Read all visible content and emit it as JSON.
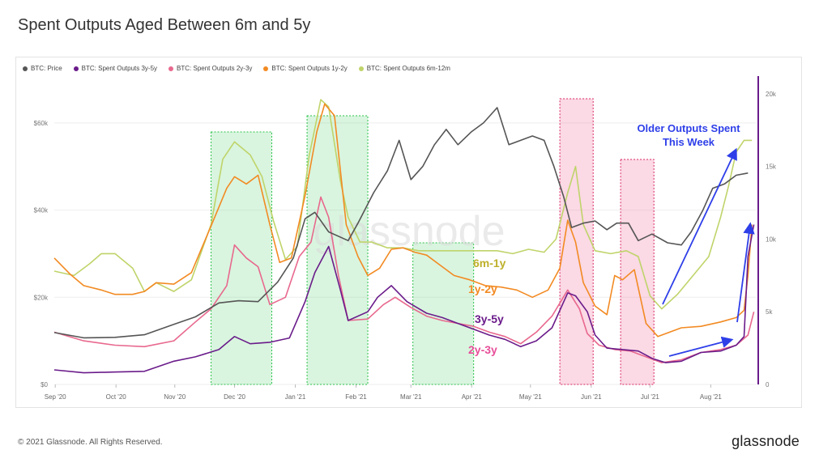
{
  "page": {
    "title": "Spent Outputs Aged Between 6m and 5y",
    "footer": "© 2021 Glassnode. All Rights Reserved.",
    "brand": "glassnode",
    "watermark": "glassnode"
  },
  "chart_data": {
    "type": "line",
    "legend": [
      {
        "name": "BTC: Price",
        "color": "#555555"
      },
      {
        "name": "BTC: Spent Outputs 3y-5y",
        "color": "#6a1b8a"
      },
      {
        "name": "BTC: Spent Outputs 2y-3y",
        "color": "#e8688e"
      },
      {
        "name": "BTC: Spent Outputs 1y-2y",
        "color": "#f28a22"
      },
      {
        "name": "BTC: Spent Outputs 6m-12m",
        "color": "#bfd46a"
      }
    ],
    "x_ticks": [
      "Sep '20",
      "Oct '20",
      "Nov '20",
      "Dec '20",
      "Jan '21",
      "Feb '21",
      "Mar '21",
      "Apr '21",
      "May '21",
      "Jun '21",
      "Jul '21",
      "Aug '21"
    ],
    "x_tick_t": [
      0.5,
      31.5,
      61.5,
      92,
      123,
      154,
      182,
      213,
      243,
      274,
      304,
      335
    ],
    "x_range": [
      0,
      358
    ],
    "left_axis": {
      "ticks": [
        0,
        20000,
        40000,
        60000
      ],
      "labels": [
        "$0",
        "$20k",
        "$40k",
        "$60k"
      ],
      "range": [
        0,
        70000
      ]
    },
    "right_axis": {
      "ticks": [
        0,
        5000,
        10000,
        15000,
        20000
      ],
      "labels": [
        "0",
        "5k",
        "10k",
        "15k",
        "20k"
      ],
      "range": [
        0,
        21000
      ]
    },
    "highlights": [
      {
        "t0": 80,
        "t1": 111,
        "color": "green"
      },
      {
        "t0": 129,
        "t1": 160,
        "color": "green"
      },
      {
        "t0": 183,
        "t1": 214,
        "color": "green"
      },
      {
        "t0": 258,
        "t1": 275,
        "color": "pink"
      },
      {
        "t0": 289,
        "t1": 306,
        "color": "pink"
      }
    ],
    "series": [
      {
        "name": "BTC: Price",
        "axis": "left",
        "color": "#555555",
        "points": [
          [
            0,
            11900
          ],
          [
            15,
            10700
          ],
          [
            31,
            10800
          ],
          [
            46,
            11400
          ],
          [
            61,
            13800
          ],
          [
            72,
            15500
          ],
          [
            84,
            18700
          ],
          [
            94,
            19200
          ],
          [
            104,
            19000
          ],
          [
            114,
            23500
          ],
          [
            122,
            29000
          ],
          [
            128,
            38000
          ],
          [
            133,
            39500
          ],
          [
            140,
            35000
          ],
          [
            150,
            33000
          ],
          [
            155,
            37000
          ],
          [
            163,
            44000
          ],
          [
            170,
            49000
          ],
          [
            176,
            56000
          ],
          [
            182,
            47000
          ],
          [
            188,
            50000
          ],
          [
            194,
            55000
          ],
          [
            200,
            58500
          ],
          [
            206,
            55000
          ],
          [
            213,
            58000
          ],
          [
            219,
            60000
          ],
          [
            226,
            63500
          ],
          [
            232,
            55000
          ],
          [
            238,
            56000
          ],
          [
            244,
            57000
          ],
          [
            250,
            56000
          ],
          [
            255,
            50000
          ],
          [
            260,
            43000
          ],
          [
            264,
            36000
          ],
          [
            270,
            37000
          ],
          [
            276,
            37500
          ],
          [
            282,
            35500
          ],
          [
            287,
            37000
          ],
          [
            293,
            37000
          ],
          [
            298,
            33000
          ],
          [
            305,
            34500
          ],
          [
            313,
            32500
          ],
          [
            320,
            32000
          ],
          [
            325,
            35000
          ],
          [
            331,
            40000
          ],
          [
            336,
            45000
          ],
          [
            342,
            46000
          ],
          [
            348,
            48000
          ],
          [
            354,
            48500
          ]
        ]
      },
      {
        "name": "BTC: Spent Outputs 3y-5y",
        "axis": "right",
        "color": "#6a1b8a",
        "points": [
          [
            0,
            1000
          ],
          [
            15,
            800
          ],
          [
            30,
            850
          ],
          [
            46,
            900
          ],
          [
            61,
            1600
          ],
          [
            72,
            1900
          ],
          [
            84,
            2400
          ],
          [
            92,
            3300
          ],
          [
            100,
            2800
          ],
          [
            110,
            2900
          ],
          [
            120,
            3200
          ],
          [
            128,
            5700
          ],
          [
            133,
            7700
          ],
          [
            140,
            9500
          ],
          [
            146,
            6500
          ],
          [
            150,
            4400
          ],
          [
            160,
            5000
          ],
          [
            165,
            6000
          ],
          [
            172,
            6800
          ],
          [
            180,
            5700
          ],
          [
            190,
            4900
          ],
          [
            198,
            4600
          ],
          [
            206,
            4200
          ],
          [
            214,
            3800
          ],
          [
            222,
            3400
          ],
          [
            230,
            3100
          ],
          [
            238,
            2600
          ],
          [
            246,
            3000
          ],
          [
            254,
            3900
          ],
          [
            262,
            6300
          ],
          [
            266,
            6100
          ],
          [
            272,
            5000
          ],
          [
            276,
            3400
          ],
          [
            282,
            2500
          ],
          [
            290,
            2400
          ],
          [
            298,
            2300
          ],
          [
            305,
            1800
          ],
          [
            312,
            1500
          ],
          [
            320,
            1600
          ],
          [
            330,
            2200
          ],
          [
            340,
            2300
          ],
          [
            348,
            2700
          ],
          [
            352,
            3300
          ],
          [
            354,
            8800
          ],
          [
            357,
            11000
          ]
        ]
      },
      {
        "name": "BTC: Spent Outputs 2y-3y",
        "axis": "right",
        "color": "#e8688e",
        "points": [
          [
            0,
            3600
          ],
          [
            15,
            3000
          ],
          [
            31,
            2700
          ],
          [
            46,
            2600
          ],
          [
            61,
            3000
          ],
          [
            72,
            4300
          ],
          [
            80,
            5200
          ],
          [
            88,
            6800
          ],
          [
            92,
            9600
          ],
          [
            98,
            8700
          ],
          [
            104,
            8100
          ],
          [
            110,
            5500
          ],
          [
            118,
            6000
          ],
          [
            125,
            8800
          ],
          [
            131,
            9800
          ],
          [
            136,
            12900
          ],
          [
            140,
            11500
          ],
          [
            145,
            7500
          ],
          [
            150,
            4400
          ],
          [
            160,
            4500
          ],
          [
            168,
            5500
          ],
          [
            174,
            6000
          ],
          [
            182,
            5300
          ],
          [
            190,
            4700
          ],
          [
            198,
            4400
          ],
          [
            206,
            4200
          ],
          [
            214,
            4000
          ],
          [
            222,
            3600
          ],
          [
            230,
            3300
          ],
          [
            238,
            2800
          ],
          [
            246,
            3600
          ],
          [
            254,
            4700
          ],
          [
            262,
            6500
          ],
          [
            268,
            5200
          ],
          [
            272,
            3500
          ],
          [
            278,
            2700
          ],
          [
            286,
            2400
          ],
          [
            294,
            2300
          ],
          [
            302,
            1900
          ],
          [
            310,
            1500
          ],
          [
            320,
            1700
          ],
          [
            330,
            2200
          ],
          [
            340,
            2400
          ],
          [
            348,
            2700
          ],
          [
            354,
            3400
          ],
          [
            357,
            5000
          ]
        ]
      },
      {
        "name": "BTC: Spent Outputs 1y-2y",
        "axis": "right",
        "color": "#f28a22",
        "points": [
          [
            0,
            8700
          ],
          [
            8,
            7600
          ],
          [
            15,
            6800
          ],
          [
            24,
            6500
          ],
          [
            31,
            6200
          ],
          [
            40,
            6200
          ],
          [
            46,
            6400
          ],
          [
            52,
            7000
          ],
          [
            61,
            6900
          ],
          [
            70,
            7700
          ],
          [
            80,
            10900
          ],
          [
            88,
            13500
          ],
          [
            92,
            14300
          ],
          [
            98,
            13800
          ],
          [
            104,
            14400
          ],
          [
            110,
            11000
          ],
          [
            115,
            8400
          ],
          [
            121,
            8700
          ],
          [
            128,
            13000
          ],
          [
            134,
            17400
          ],
          [
            138,
            19300
          ],
          [
            143,
            18500
          ],
          [
            149,
            11000
          ],
          [
            155,
            8800
          ],
          [
            160,
            7500
          ],
          [
            166,
            8000
          ],
          [
            172,
            9300
          ],
          [
            178,
            9400
          ],
          [
            184,
            9100
          ],
          [
            190,
            8900
          ],
          [
            196,
            8300
          ],
          [
            204,
            7500
          ],
          [
            212,
            7200
          ],
          [
            220,
            6800
          ],
          [
            228,
            6700
          ],
          [
            236,
            6500
          ],
          [
            244,
            6000
          ],
          [
            252,
            6500
          ],
          [
            258,
            8000
          ],
          [
            262,
            11300
          ],
          [
            266,
            9800
          ],
          [
            270,
            7000
          ],
          [
            276,
            5400
          ],
          [
            282,
            4800
          ],
          [
            286,
            7500
          ],
          [
            290,
            7200
          ],
          [
            296,
            7900
          ],
          [
            302,
            4200
          ],
          [
            308,
            3300
          ],
          [
            314,
            3600
          ],
          [
            320,
            3900
          ],
          [
            330,
            4000
          ],
          [
            340,
            4300
          ],
          [
            348,
            4600
          ],
          [
            352,
            5100
          ],
          [
            354,
            7500
          ],
          [
            356,
            11000
          ]
        ]
      },
      {
        "name": "BTC: Spent Outputs 6m-12m",
        "axis": "right",
        "color": "#bfd46a",
        "points": [
          [
            0,
            7800
          ],
          [
            10,
            7500
          ],
          [
            18,
            8300
          ],
          [
            24,
            9000
          ],
          [
            31,
            9000
          ],
          [
            40,
            8000
          ],
          [
            46,
            6400
          ],
          [
            52,
            7000
          ],
          [
            61,
            6400
          ],
          [
            70,
            7200
          ],
          [
            80,
            11000
          ],
          [
            86,
            15500
          ],
          [
            92,
            16700
          ],
          [
            100,
            15800
          ],
          [
            106,
            14300
          ],
          [
            112,
            11200
          ],
          [
            118,
            8600
          ],
          [
            124,
            9500
          ],
          [
            130,
            15700
          ],
          [
            136,
            19600
          ],
          [
            140,
            19100
          ],
          [
            146,
            14000
          ],
          [
            150,
            11500
          ],
          [
            156,
            9800
          ],
          [
            162,
            9800
          ],
          [
            170,
            9400
          ],
          [
            178,
            9400
          ],
          [
            186,
            9200
          ],
          [
            194,
            9200
          ],
          [
            202,
            9200
          ],
          [
            210,
            9200
          ],
          [
            218,
            9200
          ],
          [
            226,
            9200
          ],
          [
            234,
            9000
          ],
          [
            242,
            9300
          ],
          [
            250,
            9100
          ],
          [
            256,
            10000
          ],
          [
            262,
            13200
          ],
          [
            266,
            15000
          ],
          [
            270,
            11000
          ],
          [
            276,
            9200
          ],
          [
            284,
            9000
          ],
          [
            292,
            9200
          ],
          [
            298,
            8800
          ],
          [
            304,
            6100
          ],
          [
            310,
            5200
          ],
          [
            318,
            6200
          ],
          [
            326,
            7500
          ],
          [
            334,
            8800
          ],
          [
            340,
            11500
          ],
          [
            344,
            13600
          ],
          [
            348,
            16000
          ],
          [
            352,
            16800
          ],
          [
            356,
            16800
          ]
        ]
      }
    ],
    "annotations": [
      {
        "text": "6m-1y",
        "color": "#bdb02a"
      },
      {
        "text": "1y-2y",
        "color": "#f28a22"
      },
      {
        "text": "3y-5y",
        "color": "#6a1b8a"
      },
      {
        "text": "2y-3y",
        "color": "#e84f9a"
      },
      {
        "text": "Older Outputs Spent",
        "color": "#2e3fe8"
      },
      {
        "text": "This Week",
        "color": "#2e3fe8"
      }
    ]
  }
}
